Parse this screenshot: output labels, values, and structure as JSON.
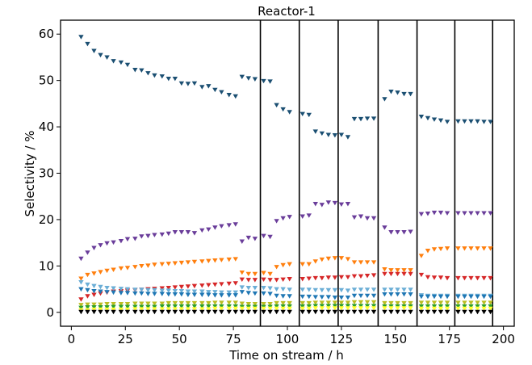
{
  "chart_data": {
    "type": "scatter",
    "title": "Reactor-1",
    "xlabel": "Time on stream / h",
    "ylabel": "Selectivity / %",
    "xlim": [
      -5,
      205
    ],
    "ylim": [
      -3,
      63
    ],
    "xticks": [
      0,
      25,
      50,
      75,
      100,
      125,
      150,
      175,
      200
    ],
    "yticks": [
      0,
      10,
      20,
      30,
      40,
      50,
      60
    ],
    "grid": false,
    "legend": "none",
    "marker": "triangle-down",
    "vlines": {
      "x": [
        87.5,
        105.5,
        123.5,
        142,
        160,
        177.5,
        195
      ],
      "color": "#000000"
    },
    "series": [
      {
        "color": "#1b4f72",
        "x": [
          4.5,
          7.5,
          10.5,
          13.5,
          16.5,
          19.5,
          23,
          26,
          29.5,
          32.5,
          35.5,
          38.5,
          42,
          45,
          48,
          51,
          54,
          57,
          60.5,
          63.5,
          66.5,
          69.5,
          73,
          76,
          79,
          82,
          85,
          89,
          92,
          95,
          98,
          101,
          107,
          110,
          113,
          116,
          119,
          122,
          125,
          128,
          131,
          134,
          137,
          140,
          145,
          148,
          151,
          154,
          157,
          162,
          165,
          168,
          171,
          174,
          179,
          182,
          185,
          188,
          191,
          194
        ],
        "values": [
          59.4,
          57.9,
          56.4,
          55.5,
          55.0,
          54.2,
          53.9,
          53.4,
          52.3,
          52.2,
          51.6,
          51.1,
          50.9,
          50.4,
          50.4,
          49.4,
          49.3,
          49.4,
          48.6,
          48.8,
          48.0,
          47.5,
          46.9,
          46.6,
          50.8,
          50.5,
          50.3,
          49.9,
          49.8,
          44.7,
          43.8,
          43.2,
          42.8,
          42.6,
          39.0,
          38.6,
          38.3,
          38.2,
          38.3,
          37.8,
          41.7,
          41.7,
          41.8,
          41.8,
          46.0,
          47.6,
          47.4,
          47.1,
          47.1,
          42.2,
          41.9,
          41.6,
          41.4,
          41.1,
          41.2,
          41.2,
          41.2,
          41.2,
          41.1,
          41.1
        ]
      },
      {
        "color": "#6a3d9a",
        "x": [
          4.5,
          7.5,
          10.5,
          13.5,
          16.5,
          19.5,
          23,
          26,
          29.5,
          32.5,
          35.5,
          38.5,
          42,
          45,
          48,
          51,
          54,
          57,
          60.5,
          63.5,
          66.5,
          69.5,
          73,
          76,
          79,
          82,
          85,
          89,
          92,
          95,
          98,
          101,
          107,
          110,
          113,
          116,
          119,
          122,
          125,
          128,
          131,
          134,
          137,
          140,
          145,
          148,
          151,
          154,
          157,
          162,
          165,
          168,
          171,
          174,
          179,
          182,
          185,
          188,
          191,
          194
        ],
        "values": [
          11.6,
          12.9,
          13.9,
          14.5,
          14.9,
          15.1,
          15.4,
          15.8,
          15.9,
          16.4,
          16.5,
          16.7,
          16.8,
          17.0,
          17.3,
          17.3,
          17.3,
          17.1,
          17.7,
          17.9,
          18.3,
          18.6,
          18.8,
          19.0,
          15.3,
          16.1,
          15.9,
          16.5,
          16.3,
          19.7,
          20.3,
          20.6,
          20.7,
          20.9,
          23.4,
          23.2,
          23.7,
          23.6,
          23.3,
          23.4,
          20.5,
          20.7,
          20.3,
          20.3,
          18.3,
          17.3,
          17.3,
          17.3,
          17.4,
          21.2,
          21.3,
          21.5,
          21.5,
          21.4,
          21.4,
          21.4,
          21.4,
          21.4,
          21.4,
          21.4
        ]
      },
      {
        "color": "#ff7f0e",
        "x": [
          4.5,
          7.5,
          10.5,
          13.5,
          16.5,
          19.5,
          23,
          26,
          29.5,
          32.5,
          35.5,
          38.5,
          42,
          45,
          48,
          51,
          54,
          57,
          60.5,
          63.5,
          66.5,
          69.5,
          73,
          76,
          79,
          82,
          85,
          89,
          92,
          95,
          98,
          101,
          107,
          110,
          113,
          116,
          119,
          122,
          125,
          128,
          131,
          134,
          137,
          140,
          145,
          148,
          151,
          154,
          157,
          162,
          165,
          168,
          171,
          174,
          179,
          182,
          185,
          188,
          191,
          194
        ],
        "values": [
          7.3,
          8.1,
          8.4,
          8.7,
          9.0,
          9.2,
          9.5,
          9.6,
          9.8,
          10.0,
          10.1,
          10.3,
          10.4,
          10.5,
          10.6,
          10.7,
          10.8,
          10.9,
          11.0,
          11.1,
          11.2,
          11.3,
          11.4,
          11.5,
          8.6,
          8.3,
          8.3,
          8.5,
          8.3,
          9.8,
          10.2,
          10.4,
          10.4,
          10.4,
          11.0,
          11.4,
          11.6,
          11.7,
          11.7,
          11.5,
          10.8,
          10.8,
          10.8,
          10.8,
          9.3,
          9.1,
          9.1,
          9.1,
          9.1,
          12.2,
          13.3,
          13.6,
          13.7,
          13.8,
          13.8,
          13.8,
          13.8,
          13.8,
          13.8,
          13.8
        ]
      },
      {
        "color": "#d62728",
        "x": [
          4.5,
          7.5,
          10.5,
          13.5,
          16.5,
          19.5,
          23,
          26,
          29.5,
          32.5,
          35.5,
          38.5,
          42,
          45,
          48,
          51,
          54,
          57,
          60.5,
          63.5,
          66.5,
          69.5,
          73,
          76,
          79,
          82,
          85,
          89,
          92,
          95,
          98,
          101,
          107,
          110,
          113,
          116,
          119,
          122,
          125,
          128,
          131,
          134,
          137,
          140,
          145,
          148,
          151,
          154,
          157,
          162,
          165,
          168,
          171,
          174,
          179,
          182,
          185,
          188,
          191,
          194
        ],
        "values": [
          2.8,
          3.5,
          3.8,
          4.1,
          4.3,
          4.5,
          4.6,
          4.7,
          4.8,
          4.9,
          5.0,
          5.1,
          5.2,
          5.3,
          5.4,
          5.5,
          5.6,
          5.7,
          5.8,
          5.9,
          6.0,
          6.1,
          6.2,
          6.3,
          7.1,
          7.0,
          7.0,
          7.1,
          7.0,
          7.0,
          7.1,
          7.2,
          7.2,
          7.3,
          7.4,
          7.4,
          7.5,
          7.5,
          7.6,
          7.6,
          7.8,
          7.8,
          7.9,
          8.0,
          8.3,
          8.3,
          8.3,
          8.3,
          8.3,
          8.1,
          7.6,
          7.5,
          7.5,
          7.4,
          7.4,
          7.4,
          7.4,
          7.4,
          7.4,
          7.4
        ]
      },
      {
        "color": "#6baed6",
        "x": [
          4.5,
          7.5,
          10.5,
          13.5,
          16.5,
          19.5,
          23,
          26,
          29.5,
          32.5,
          35.5,
          38.5,
          42,
          45,
          48,
          51,
          54,
          57,
          60.5,
          63.5,
          66.5,
          69.5,
          73,
          76,
          79,
          82,
          85,
          89,
          92,
          95,
          98,
          101,
          107,
          110,
          113,
          116,
          119,
          122,
          125,
          128,
          131,
          134,
          137,
          140,
          145,
          148,
          151,
          154,
          157,
          162,
          165,
          168,
          171,
          174,
          179,
          182,
          185,
          188,
          191,
          194
        ],
        "values": [
          6.5,
          6.0,
          5.7,
          5.5,
          5.3,
          5.2,
          5.1,
          5.0,
          4.9,
          4.9,
          4.8,
          4.8,
          4.7,
          4.7,
          4.6,
          4.6,
          4.5,
          4.5,
          4.5,
          4.4,
          4.4,
          4.3,
          4.3,
          4.3,
          5.4,
          5.3,
          5.3,
          5.3,
          5.2,
          5.0,
          5.0,
          4.9,
          4.9,
          4.9,
          4.8,
          4.8,
          4.8,
          4.8,
          4.8,
          4.7,
          4.9,
          4.9,
          4.9,
          4.9,
          4.9,
          4.9,
          4.9,
          4.9,
          4.9,
          3.7,
          3.6,
          3.6,
          3.6,
          3.6,
          3.6,
          3.6,
          3.6,
          3.6,
          3.6,
          3.6
        ]
      },
      {
        "color": "#1f77b4",
        "x": [
          4.5,
          7.5,
          10.5,
          13.5,
          16.5,
          19.5,
          23,
          26,
          29.5,
          32.5,
          35.5,
          38.5,
          42,
          45,
          48,
          51,
          54,
          57,
          60.5,
          63.5,
          66.5,
          69.5,
          73,
          76,
          79,
          82,
          85,
          89,
          92,
          95,
          98,
          101,
          107,
          110,
          113,
          116,
          119,
          122,
          125,
          128,
          131,
          134,
          137,
          140,
          145,
          148,
          151,
          154,
          157,
          162,
          165,
          168,
          171,
          174,
          179,
          182,
          185,
          188,
          191,
          194
        ],
        "values": [
          5.0,
          4.8,
          4.6,
          4.5,
          4.4,
          4.3,
          4.2,
          4.2,
          4.1,
          4.1,
          4.0,
          4.0,
          4.0,
          3.9,
          3.9,
          3.9,
          3.8,
          3.8,
          3.8,
          3.8,
          3.7,
          3.7,
          3.7,
          3.7,
          4.4,
          4.2,
          4.1,
          4.1,
          4.0,
          3.6,
          3.5,
          3.5,
          3.4,
          3.4,
          3.3,
          3.3,
          3.3,
          3.2,
          3.2,
          3.2,
          3.6,
          3.6,
          3.6,
          3.6,
          3.9,
          3.9,
          3.9,
          3.9,
          3.9,
          3.4,
          3.4,
          3.4,
          3.4,
          3.4,
          3.4,
          3.4,
          3.4,
          3.4,
          3.4,
          3.4
        ]
      },
      {
        "color": "#bcbd22",
        "x": [
          4.5,
          7.5,
          10.5,
          13.5,
          16.5,
          19.5,
          23,
          26,
          29.5,
          32.5,
          35.5,
          38.5,
          42,
          45,
          48,
          51,
          54,
          57,
          60.5,
          63.5,
          66.5,
          69.5,
          73,
          76,
          79,
          82,
          85,
          89,
          92,
          95,
          98,
          101,
          107,
          110,
          113,
          116,
          119,
          122,
          125,
          128,
          131,
          134,
          137,
          140,
          145,
          148,
          151,
          154,
          157,
          162,
          165,
          168,
          171,
          174,
          179,
          182,
          185,
          188,
          191,
          194
        ],
        "values": [
          1.6,
          1.7,
          1.7,
          1.7,
          1.8,
          1.8,
          1.8,
          1.8,
          1.9,
          1.9,
          1.9,
          1.9,
          1.9,
          2.0,
          2.0,
          2.0,
          2.0,
          2.0,
          2.0,
          2.0,
          2.1,
          2.1,
          2.1,
          2.1,
          1.9,
          1.8,
          1.8,
          1.8,
          1.8,
          2.0,
          2.0,
          2.0,
          2.0,
          2.0,
          2.1,
          2.1,
          2.1,
          2.1,
          2.1,
          2.1,
          2.2,
          2.2,
          2.2,
          2.2,
          2.0,
          2.0,
          2.0,
          2.0,
          2.0,
          2.1,
          2.1,
          2.1,
          2.1,
          2.1,
          2.1,
          2.1,
          2.1,
          2.1,
          2.1,
          2.1
        ]
      },
      {
        "color": "#2ca02c",
        "x": [
          4.5,
          7.5,
          10.5,
          13.5,
          16.5,
          19.5,
          23,
          26,
          29.5,
          32.5,
          35.5,
          38.5,
          42,
          45,
          48,
          51,
          54,
          57,
          60.5,
          63.5,
          66.5,
          69.5,
          73,
          76,
          79,
          82,
          85,
          89,
          92,
          95,
          98,
          101,
          107,
          110,
          113,
          116,
          119,
          122,
          125,
          128,
          131,
          134,
          137,
          140,
          145,
          148,
          151,
          154,
          157,
          162,
          165,
          168,
          171,
          174,
          179,
          182,
          185,
          188,
          191,
          194
        ],
        "values": [
          1.0,
          1.1,
          1.1,
          1.1,
          1.1,
          1.2,
          1.2,
          1.2,
          1.2,
          1.2,
          1.2,
          1.2,
          1.3,
          1.3,
          1.3,
          1.3,
          1.3,
          1.3,
          1.3,
          1.3,
          1.3,
          1.3,
          1.3,
          1.3,
          1.2,
          1.2,
          1.2,
          1.2,
          1.2,
          1.3,
          1.3,
          1.3,
          1.3,
          1.3,
          1.4,
          1.4,
          1.4,
          1.4,
          1.4,
          1.4,
          1.4,
          1.4,
          1.4,
          1.4,
          1.3,
          1.3,
          1.3,
          1.3,
          1.3,
          1.3,
          1.3,
          1.3,
          1.3,
          1.3,
          1.3,
          1.3,
          1.3,
          1.3,
          1.3,
          1.3
        ]
      },
      {
        "color": "#ffff33",
        "x": [
          4.5,
          7.5,
          10.5,
          13.5,
          16.5,
          19.5,
          23,
          26,
          29.5,
          32.5,
          35.5,
          38.5,
          42,
          45,
          48,
          51,
          54,
          57,
          60.5,
          63.5,
          66.5,
          69.5,
          73,
          76,
          79,
          82,
          85,
          89,
          92,
          95,
          98,
          101,
          107,
          110,
          113,
          116,
          119,
          122,
          125,
          128,
          131,
          134,
          137,
          140,
          145,
          148,
          151,
          154,
          157,
          162,
          165,
          168,
          171,
          174,
          179,
          182,
          185,
          188,
          191,
          194
        ],
        "values": [
          0.5,
          0.5,
          0.6,
          0.6,
          0.6,
          0.6,
          0.6,
          0.6,
          0.7,
          0.7,
          0.7,
          0.7,
          0.7,
          0.7,
          0.7,
          0.7,
          0.7,
          0.7,
          0.7,
          0.7,
          0.8,
          0.8,
          0.8,
          0.8,
          0.8,
          0.8,
          0.8,
          0.8,
          0.8,
          0.8,
          0.8,
          0.8,
          0.8,
          0.8,
          0.9,
          0.9,
          0.9,
          0.9,
          0.9,
          0.9,
          0.9,
          0.9,
          0.9,
          0.9,
          0.9,
          0.9,
          0.9,
          0.9,
          0.9,
          0.8,
          0.8,
          0.8,
          0.8,
          0.8,
          0.8,
          0.8,
          0.8,
          0.8,
          0.8,
          0.8
        ]
      },
      {
        "color": "#000000",
        "x": [
          4.5,
          7.5,
          10.5,
          13.5,
          16.5,
          19.5,
          23,
          26,
          29.5,
          32.5,
          35.5,
          38.5,
          42,
          45,
          48,
          51,
          54,
          57,
          60.5,
          63.5,
          66.5,
          69.5,
          73,
          76,
          79,
          82,
          85,
          89,
          92,
          95,
          98,
          101,
          107,
          110,
          113,
          116,
          119,
          122,
          125,
          128,
          131,
          134,
          137,
          140,
          145,
          148,
          151,
          154,
          157,
          162,
          165,
          168,
          171,
          174,
          179,
          182,
          185,
          188,
          191,
          194
        ],
        "values": [
          0.1,
          0.1,
          0.1,
          0.1,
          0.1,
          0.1,
          0.1,
          0.1,
          0.1,
          0.1,
          0.1,
          0.1,
          0.1,
          0.1,
          0.1,
          0.1,
          0.1,
          0.1,
          0.1,
          0.1,
          0.1,
          0.1,
          0.1,
          0.1,
          0.1,
          0.1,
          0.1,
          0.1,
          0.1,
          0.1,
          0.1,
          0.1,
          0.1,
          0.1,
          0.1,
          0.1,
          0.1,
          0.1,
          0.1,
          0.1,
          0.1,
          0.1,
          0.1,
          0.1,
          0.1,
          0.1,
          0.1,
          0.1,
          0.1,
          0.1,
          0.1,
          0.1,
          0.1,
          0.1,
          0.1,
          0.1,
          0.1,
          0.1,
          0.1,
          0.1
        ]
      }
    ]
  }
}
